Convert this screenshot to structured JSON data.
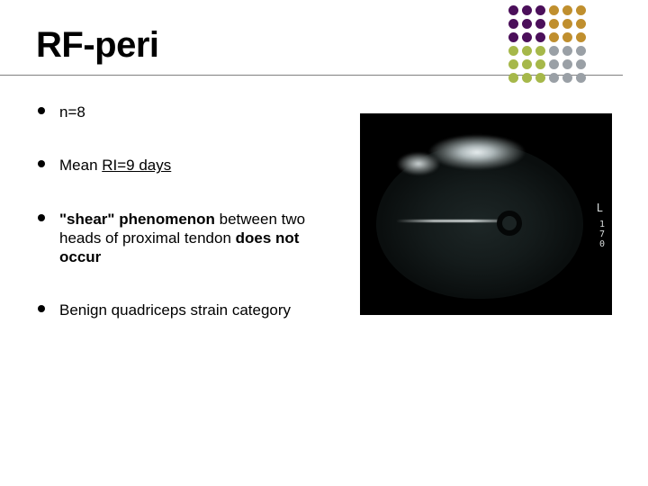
{
  "title": "RF-peri",
  "bullets": [
    {
      "parts": [
        {
          "text": "n=8"
        }
      ]
    },
    {
      "parts": [
        {
          "text": "Mean "
        },
        {
          "text": "RI=9 days",
          "underline": true
        }
      ]
    },
    {
      "parts": [
        {
          "text": "\"shear\" phenomenon",
          "bold": true
        },
        {
          "text": " between two heads of proximal tendon "
        },
        {
          "text": "does not occur",
          "bold": true
        }
      ]
    },
    {
      "parts": [
        {
          "text": "Benign quadriceps strain category"
        }
      ]
    }
  ],
  "mri": {
    "side_label": "L",
    "corner_numbers": "1\n7\n0",
    "background_color": "#000000"
  },
  "dot_grid": {
    "rows": 6,
    "cols": 6,
    "colors": [
      [
        "#4b0f5a",
        "#4b0f5a",
        "#4b0f5a",
        "#c08f2e",
        "#c08f2e",
        "#c08f2e"
      ],
      [
        "#4b0f5a",
        "#4b0f5a",
        "#4b0f5a",
        "#c08f2e",
        "#c08f2e",
        "#c08f2e"
      ],
      [
        "#4b0f5a",
        "#4b0f5a",
        "#4b0f5a",
        "#c08f2e",
        "#c08f2e",
        "#c08f2e"
      ],
      [
        "#a6b84a",
        "#a6b84a",
        "#a6b84a",
        "#9aa0a6",
        "#9aa0a6",
        "#9aa0a6"
      ],
      [
        "#a6b84a",
        "#a6b84a",
        "#a6b84a",
        "#9aa0a6",
        "#9aa0a6",
        "#9aa0a6"
      ],
      [
        "#a6b84a",
        "#a6b84a",
        "#a6b84a",
        "#9aa0a6",
        "#9aa0a6",
        "#9aa0a6"
      ]
    ]
  }
}
